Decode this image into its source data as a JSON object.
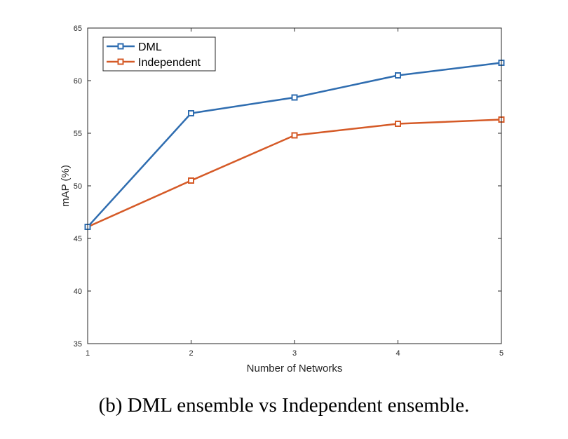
{
  "caption": "(b) DML ensemble vs Independent ensemble.",
  "chart_data": {
    "type": "line",
    "title": "",
    "xlabel": "Number of Networks",
    "ylabel": "mAP (%)",
    "x": [
      1,
      2,
      3,
      4,
      5
    ],
    "x_tick_labels": [
      "1",
      "2",
      "3",
      "4",
      "5"
    ],
    "y_tick_labels": [
      "35",
      "40",
      "45",
      "50",
      "55",
      "60",
      "65"
    ],
    "y_ticks": [
      35,
      40,
      45,
      50,
      55,
      60,
      65
    ],
    "xlim": [
      1,
      5
    ],
    "ylim": [
      35,
      65
    ],
    "grid": false,
    "legend_position": "top-left",
    "marker": "square",
    "series": [
      {
        "name": "DML",
        "color": "#2f6db0",
        "values": [
          46.1,
          56.9,
          58.4,
          60.5,
          61.7
        ]
      },
      {
        "name": "Independent",
        "color": "#d55a27",
        "values": [
          46.1,
          50.5,
          54.8,
          55.9,
          56.3
        ]
      }
    ]
  }
}
